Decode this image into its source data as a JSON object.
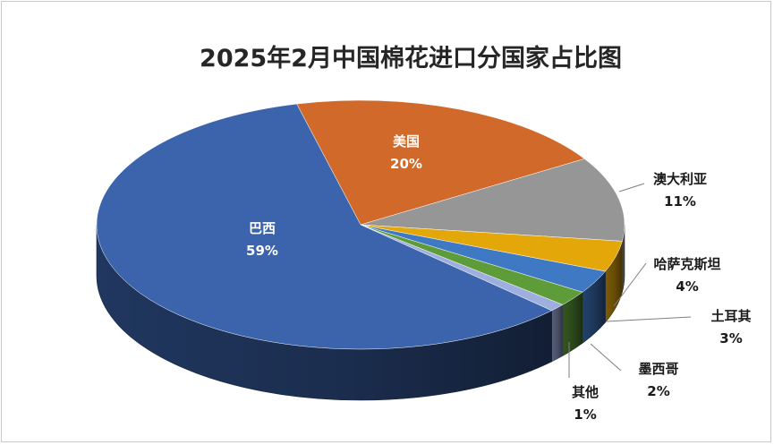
{
  "chart_data": {
    "type": "pie",
    "title": "2025年2月中国棉花进口分国家占比图",
    "slices": [
      {
        "name": "美国",
        "value": 20,
        "label": "20%",
        "color": "#D0692A",
        "label_style": "inside"
      },
      {
        "name": "澳大利亚",
        "value": 11,
        "label": "11%",
        "color": "#969696",
        "label_style": "outside"
      },
      {
        "name": "哈萨克斯坦",
        "value": 4,
        "label": "4%",
        "color": "#E3A70A",
        "label_style": "outside"
      },
      {
        "name": "土耳其",
        "value": 3,
        "label": "3%",
        "color": "#3F79C4",
        "label_style": "outside"
      },
      {
        "name": "墨西哥",
        "value": 2,
        "label": "2%",
        "color": "#5E9C3A",
        "label_style": "outside"
      },
      {
        "name": "其他",
        "value": 1,
        "label": "1%",
        "color": "#9DAEDF",
        "label_style": "outside"
      },
      {
        "name": "巴西",
        "value": 59,
        "label": "59%",
        "color": "#3B64AD",
        "label_style": "inside"
      }
    ],
    "style": "3d-tilted",
    "legend": "none"
  }
}
